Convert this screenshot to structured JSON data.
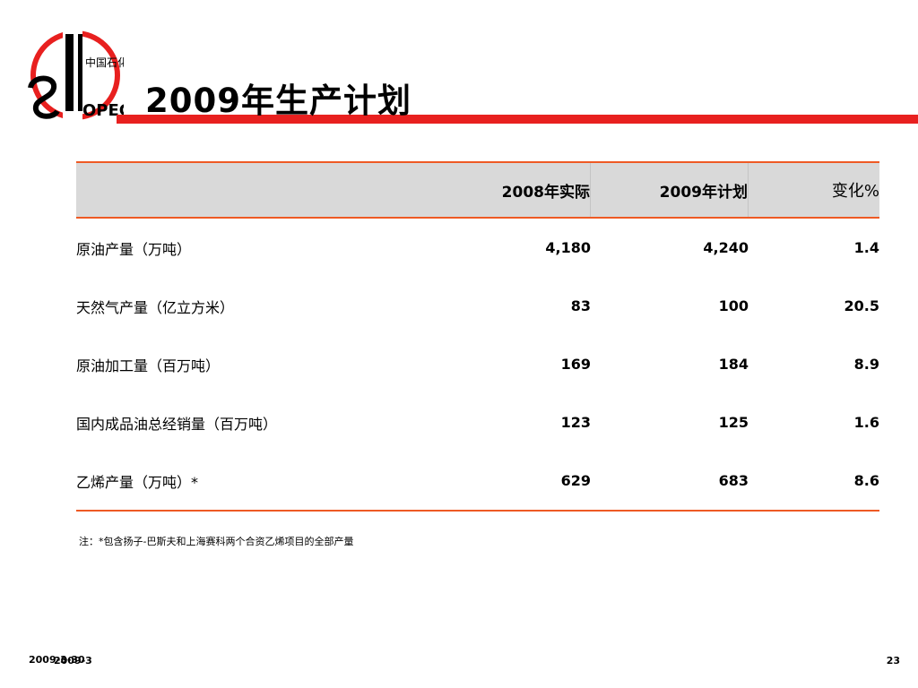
{
  "slide": {
    "title": "2009年生产计划",
    "logo_text": "中国石化",
    "logo_wordmark": "SINOPEC",
    "brand_red": "#e8201f",
    "accent_orange": "#ee5a24"
  },
  "table": {
    "headers": [
      "",
      "2008年实际",
      "2009年计划",
      "变化%"
    ],
    "rows": [
      {
        "label": "原油产量（万吨）",
        "v2008": "4,180",
        "v2009": "4,240",
        "change": "1.4"
      },
      {
        "label": "天然气产量（亿立方米）",
        "v2008": "83",
        "v2009": "100",
        "change": "20.5"
      },
      {
        "label": "原油加工量（百万吨）",
        "v2008": "169",
        "v2009": "184",
        "change": "8.9"
      },
      {
        "label": "国内成品油总经销量（百万吨）",
        "v2008": "123",
        "v2009": "125",
        "change": "1.6"
      },
      {
        "label": "乙烯产量（万吨）*",
        "v2008": "629",
        "v2009": "683",
        "change": "8.6"
      }
    ]
  },
  "note": "注：*包含扬子-巴斯夫和上海赛科两个合资乙烯项目的全部产量",
  "footer": {
    "date": "2009-3-30",
    "date_overlay": "2009-3",
    "page_number": "23"
  }
}
